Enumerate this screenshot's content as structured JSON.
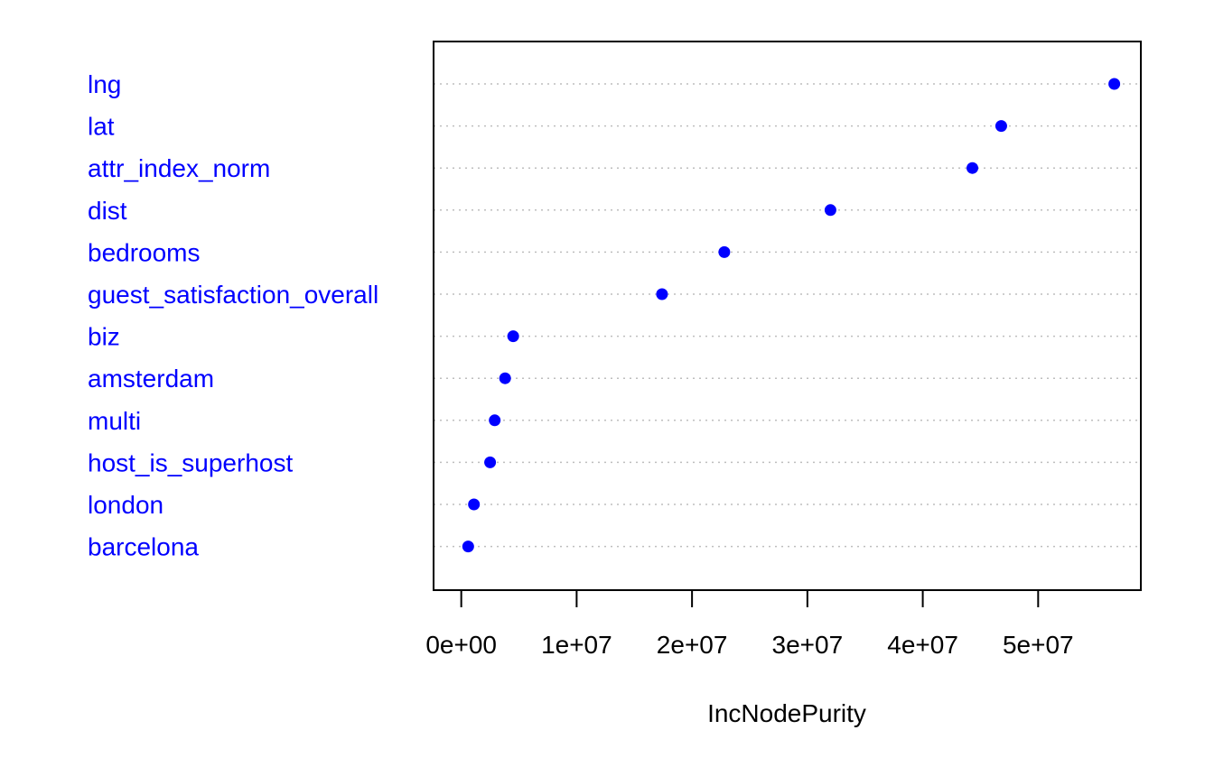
{
  "chart_data": {
    "type": "scatter",
    "categories": [
      "lng",
      "lat",
      "attr_index_norm",
      "dist",
      "bedrooms",
      "guest_satisfaction_overall",
      "biz",
      "amsterdam",
      "multi",
      "host_is_superhost",
      "london",
      "barcelona"
    ],
    "values": [
      56600000,
      46800000,
      44300000,
      32000000,
      22800000,
      17400000,
      4500000,
      3800000,
      2900000,
      2500000,
      1100000,
      600000
    ],
    "xlabel": "IncNodePurity",
    "xlim": [
      -2400000,
      58900000
    ],
    "xticks": [
      0,
      10000000,
      20000000,
      30000000,
      40000000,
      50000000
    ],
    "xtick_labels": [
      "0e+00",
      "1e+07",
      "2e+07",
      "3e+07",
      "4e+07",
      "5e+07"
    ],
    "grid": "dotted horizontal",
    "colors": {
      "point": "#0000ff",
      "label": "#0000ff",
      "grid": "#bebebe",
      "axis": "#000000"
    }
  }
}
